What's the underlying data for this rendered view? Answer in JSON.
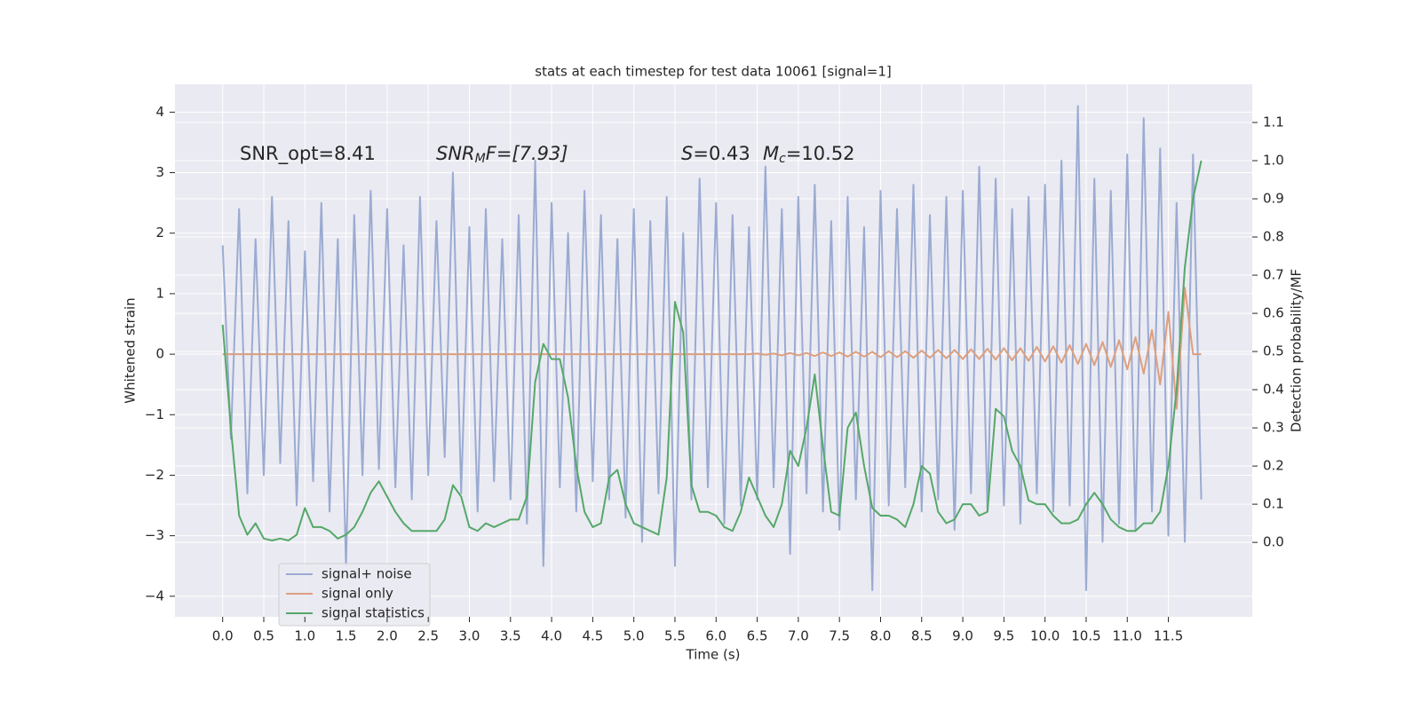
{
  "chart_data": {
    "type": "line",
    "title": "stats at each timestep for test data 10061 [signal=1]",
    "xlabel": "Time (s)",
    "ylabel": "Whitened strain",
    "y2label": "Detection probability/MF",
    "annotations": [
      [
        "SNR_opt=8.41"
      ],
      [
        "SNR",
        "M",
        "F=[7.93]"
      ],
      [
        "S",
        "=0.43",
        "M",
        "c",
        "=10.52"
      ]
    ],
    "grid": true,
    "legend": "lower left",
    "xlim": [
      -0.58,
      12.52
    ],
    "ylim": [
      -4.34,
      4.46
    ],
    "y2lim": [
      -0.195,
      1.2
    ],
    "xticks": [
      {
        "value": 0,
        "label": "0.0"
      },
      0.5,
      {
        "value": 1,
        "label": "1.0"
      },
      1.5,
      {
        "value": 2,
        "label": "2.0"
      },
      2.5,
      {
        "value": 3,
        "label": "3.0"
      },
      3.5,
      {
        "value": 4,
        "label": "4.0"
      },
      4.5,
      {
        "value": 5,
        "label": "5.0"
      },
      5.5,
      {
        "value": 6,
        "label": "6.0"
      },
      6.5,
      {
        "value": 7,
        "label": "7.0"
      },
      7.5,
      {
        "value": 8,
        "label": "8.0"
      },
      8.5,
      {
        "value": 9,
        "label": "9.0"
      },
      9.5,
      {
        "value": 10,
        "label": "10.0"
      },
      10.5,
      {
        "value": 11,
        "label": "11.0"
      },
      11.5
    ],
    "yticks": [
      {
        "value": -4,
        "label": "−4"
      },
      {
        "value": -3,
        "label": "−3"
      },
      {
        "value": -2,
        "label": "−2"
      },
      {
        "value": -1,
        "label": "−1"
      },
      0,
      1,
      2,
      3,
      4
    ],
    "y2ticks": [
      {
        "value": 0,
        "label": "0.0"
      },
      0.1,
      0.2,
      0.3,
      0.4,
      0.5,
      0.6,
      0.7,
      0.8,
      0.9,
      {
        "value": 1,
        "label": "1.0"
      },
      1.1
    ],
    "x": [
      0.0,
      0.1,
      0.2,
      0.3,
      0.4,
      0.5,
      0.6,
      0.7,
      0.8,
      0.9,
      1.0,
      1.1,
      1.2,
      1.3,
      1.4,
      1.5,
      1.6,
      1.7,
      1.8,
      1.9,
      2.0,
      2.1,
      2.2,
      2.3,
      2.4,
      2.5,
      2.6,
      2.7,
      2.8,
      2.9,
      3.0,
      3.1,
      3.2,
      3.3,
      3.4,
      3.5,
      3.6,
      3.7,
      3.8,
      3.9,
      4.0,
      4.1,
      4.2,
      4.3,
      4.4,
      4.5,
      4.6,
      4.7,
      4.8,
      4.9,
      5.0,
      5.1,
      5.2,
      5.3,
      5.4,
      5.5,
      5.6,
      5.7,
      5.8,
      5.9,
      6.0,
      6.1,
      6.2,
      6.3,
      6.4,
      6.5,
      6.6,
      6.7,
      6.8,
      6.9,
      7.0,
      7.1,
      7.2,
      7.3,
      7.4,
      7.5,
      7.6,
      7.7,
      7.8,
      7.9,
      8.0,
      8.1,
      8.2,
      8.3,
      8.4,
      8.5,
      8.6,
      8.7,
      8.8,
      8.9,
      9.0,
      9.1,
      9.2,
      9.3,
      9.4,
      9.5,
      9.6,
      9.7,
      9.8,
      9.9,
      10.0,
      10.1,
      10.2,
      10.3,
      10.4,
      10.5,
      10.6,
      10.7,
      10.8,
      10.9,
      11.0,
      11.1,
      11.2,
      11.3,
      11.4,
      11.5,
      11.6,
      11.7,
      11.8,
      11.9
    ],
    "series": [
      {
        "name": "signal+ noise",
        "color": "#9aabd2",
        "values": [
          1.8,
          -1.4,
          2.4,
          -2.3,
          1.9,
          -2.0,
          2.6,
          -1.8,
          2.2,
          -2.5,
          1.7,
          -2.1,
          2.5,
          -2.6,
          1.9,
          -3.5,
          2.3,
          -2.0,
          2.7,
          -1.9,
          2.4,
          -2.2,
          1.8,
          -2.4,
          2.6,
          -2.0,
          2.2,
          -1.7,
          3.0,
          -2.3,
          2.1,
          -2.6,
          2.4,
          -2.1,
          1.9,
          -2.4,
          2.3,
          -2.8,
          3.2,
          -3.5,
          2.5,
          -2.2,
          2.0,
          -2.6,
          2.7,
          -2.1,
          2.3,
          -2.4,
          1.9,
          -2.7,
          2.4,
          -3.1,
          2.2,
          -2.3,
          2.6,
          -3.5,
          2.0,
          -2.4,
          2.9,
          -2.2,
          2.5,
          -2.8,
          2.3,
          -2.5,
          2.1,
          -2.4,
          3.1,
          -2.2,
          2.4,
          -3.3,
          2.6,
          -2.3,
          2.8,
          -2.6,
          2.2,
          -2.9,
          2.6,
          -2.4,
          2.1,
          -3.9,
          2.7,
          -2.5,
          2.4,
          -2.2,
          2.8,
          -2.6,
          2.3,
          -2.4,
          2.6,
          -2.9,
          2.7,
          -2.3,
          3.1,
          -2.6,
          2.9,
          -2.5,
          2.4,
          -2.8,
          2.6,
          -2.3,
          2.8,
          -2.6,
          3.2,
          -2.5,
          4.1,
          -3.9,
          2.9,
          -3.1,
          2.7,
          -2.8,
          3.3,
          -2.9,
          3.9,
          -2.6,
          3.4,
          -3.0,
          2.5,
          -3.1,
          3.3,
          -2.4
        ]
      },
      {
        "name": "signal only",
        "color": "#dd9f7e",
        "values": [
          0,
          0,
          0,
          0,
          0,
          0,
          0,
          0,
          0,
          0,
          0,
          0,
          0,
          0,
          0,
          0,
          0,
          0,
          0,
          0,
          0,
          0,
          0,
          0,
          0,
          0,
          0,
          0,
          0,
          0,
          0,
          0,
          0,
          0,
          0,
          0,
          0,
          0,
          0,
          0,
          0,
          0,
          0,
          0,
          0,
          0,
          0,
          0,
          0,
          0,
          0,
          0,
          0,
          0,
          0,
          0,
          0,
          0,
          0,
          0,
          0,
          0,
          0,
          0,
          0,
          0.01,
          -0.01,
          0.01,
          -0.02,
          0.02,
          -0.02,
          0.02,
          -0.03,
          0.03,
          -0.03,
          0.03,
          -0.04,
          0.04,
          -0.04,
          0.04,
          -0.05,
          0.05,
          -0.05,
          0.05,
          -0.06,
          0.06,
          -0.06,
          0.07,
          -0.07,
          0.07,
          -0.08,
          0.08,
          -0.08,
          0.09,
          -0.09,
          0.1,
          -0.1,
          0.1,
          -0.11,
          0.12,
          -0.12,
          0.13,
          -0.14,
          0.15,
          -0.16,
          0.17,
          -0.18,
          0.2,
          -0.21,
          0.23,
          -0.25,
          0.28,
          -0.32,
          0.4,
          -0.5,
          0.7,
          -0.9,
          1.1,
          0,
          0
        ]
      },
      {
        "name": "signal statistics",
        "color": "#55a868",
        "axis": "y2",
        "values": [
          0.57,
          0.3,
          0.07,
          0.02,
          0.05,
          0.01,
          0.005,
          0.01,
          0.005,
          0.02,
          0.09,
          0.04,
          0.04,
          0.03,
          0.01,
          0.02,
          0.04,
          0.08,
          0.13,
          0.16,
          0.12,
          0.08,
          0.05,
          0.03,
          0.03,
          0.03,
          0.03,
          0.06,
          0.15,
          0.12,
          0.04,
          0.03,
          0.05,
          0.04,
          0.05,
          0.06,
          0.06,
          0.12,
          0.42,
          0.52,
          0.48,
          0.48,
          0.38,
          0.2,
          0.08,
          0.04,
          0.05,
          0.17,
          0.19,
          0.1,
          0.05,
          0.04,
          0.03,
          0.02,
          0.17,
          0.63,
          0.55,
          0.15,
          0.08,
          0.08,
          0.07,
          0.04,
          0.03,
          0.08,
          0.17,
          0.12,
          0.07,
          0.04,
          0.1,
          0.24,
          0.2,
          0.3,
          0.44,
          0.25,
          0.08,
          0.07,
          0.3,
          0.34,
          0.2,
          0.09,
          0.07,
          0.07,
          0.06,
          0.04,
          0.1,
          0.2,
          0.18,
          0.08,
          0.05,
          0.06,
          0.1,
          0.1,
          0.07,
          0.08,
          0.35,
          0.33,
          0.24,
          0.2,
          0.11,
          0.1,
          0.1,
          0.07,
          0.05,
          0.05,
          0.06,
          0.1,
          0.13,
          0.1,
          0.06,
          0.04,
          0.03,
          0.03,
          0.05,
          0.05,
          0.08,
          0.2,
          0.4,
          0.72,
          0.9,
          1.0
        ]
      }
    ]
  }
}
